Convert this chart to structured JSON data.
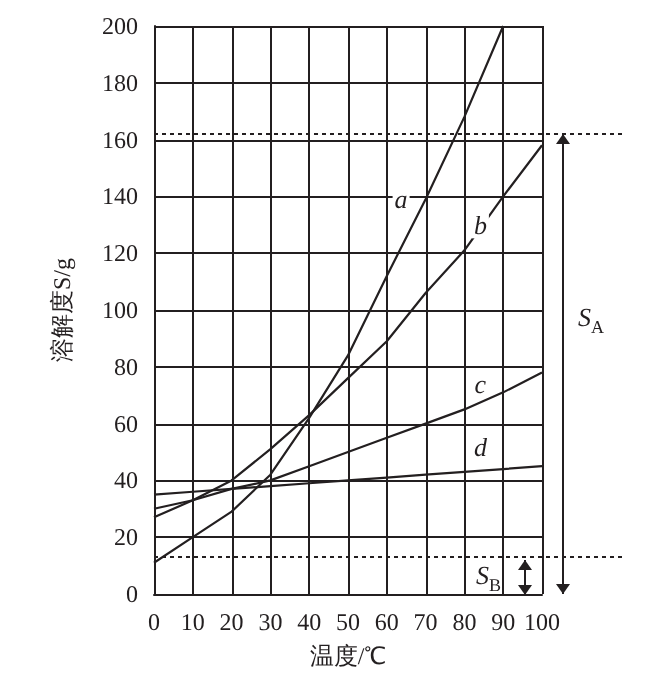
{
  "chart_data": {
    "type": "line",
    "xlabel": "温度/℃",
    "ylabel": "溶解度S/g",
    "x": [
      0,
      10,
      20,
      30,
      40,
      50,
      60,
      70,
      80,
      90,
      100
    ],
    "series": [
      {
        "name": "a",
        "color": "#231f20",
        "x": [
          0,
          10,
          20,
          30,
          40,
          50,
          60,
          70,
          80,
          90
        ],
        "values": [
          11,
          20,
          29,
          42,
          62,
          84,
          112,
          139,
          168,
          200
        ]
      },
      {
        "name": "b",
        "color": "#231f20",
        "values": [
          27,
          33,
          40,
          51,
          63,
          76,
          89,
          106,
          121,
          140,
          158
        ]
      },
      {
        "name": "c",
        "color": "#231f20",
        "values": [
          30,
          33,
          37,
          40,
          45,
          50,
          55,
          60,
          65,
          71,
          78
        ]
      },
      {
        "name": "d",
        "color": "#231f20",
        "values": [
          35,
          36,
          37,
          38,
          39,
          40,
          41,
          42,
          43,
          44,
          45
        ]
      }
    ],
    "xlim": [
      0,
      100
    ],
    "xticks": [
      0,
      10,
      20,
      30,
      40,
      50,
      60,
      70,
      80,
      90,
      100
    ],
    "ylim": [
      0,
      200
    ],
    "yticks": [
      0,
      20,
      40,
      60,
      80,
      100,
      120,
      140,
      160,
      180,
      200
    ],
    "grid": true,
    "ref_lines": [
      {
        "axis": "y",
        "value": 162,
        "line_style": "dotted"
      },
      {
        "axis": "y",
        "value": 13,
        "line_style": "dotted"
      }
    ],
    "annotations": [
      "S$_{A}$",
      "S$_{B}$"
    ]
  }
}
